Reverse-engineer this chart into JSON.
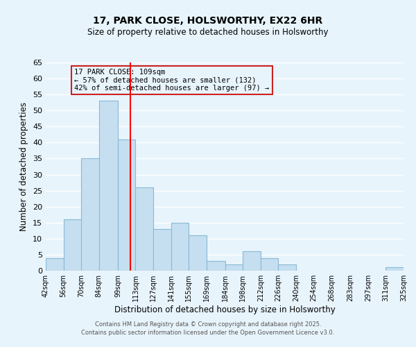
{
  "title": "17, PARK CLOSE, HOLSWORTHY, EX22 6HR",
  "subtitle": "Size of property relative to detached houses in Holsworthy",
  "xlabel": "Distribution of detached houses by size in Holsworthy",
  "ylabel": "Number of detached properties",
  "bar_edges": [
    42,
    56,
    70,
    84,
    99,
    113,
    127,
    141,
    155,
    169,
    184,
    198,
    212,
    226,
    240,
    254,
    268,
    283,
    297,
    311,
    325
  ],
  "bar_heights": [
    4,
    16,
    35,
    53,
    41,
    26,
    13,
    15,
    11,
    3,
    2,
    6,
    4,
    2,
    0,
    0,
    0,
    0,
    0,
    1
  ],
  "bar_color": "#c5dff0",
  "bar_edge_color": "#8ab8d4",
  "vline_x": 109,
  "vline_color": "red",
  "ylim": [
    0,
    65
  ],
  "yticks": [
    0,
    5,
    10,
    15,
    20,
    25,
    30,
    35,
    40,
    45,
    50,
    55,
    60,
    65
  ],
  "annotation_title": "17 PARK CLOSE: 109sqm",
  "annotation_line1": "← 57% of detached houses are smaller (132)",
  "annotation_line2": "42% of semi-detached houses are larger (97) →",
  "footer_line1": "Contains HM Land Registry data © Crown copyright and database right 2025.",
  "footer_line2": "Contains public sector information licensed under the Open Government Licence v3.0.",
  "tick_labels": [
    "42sqm",
    "56sqm",
    "70sqm",
    "84sqm",
    "99sqm",
    "113sqm",
    "127sqm",
    "141sqm",
    "155sqm",
    "169sqm",
    "184sqm",
    "198sqm",
    "212sqm",
    "226sqm",
    "240sqm",
    "254sqm",
    "268sqm",
    "283sqm",
    "297sqm",
    "311sqm",
    "325sqm"
  ],
  "background_color": "#e8f4fc",
  "grid_color": "#ffffff"
}
